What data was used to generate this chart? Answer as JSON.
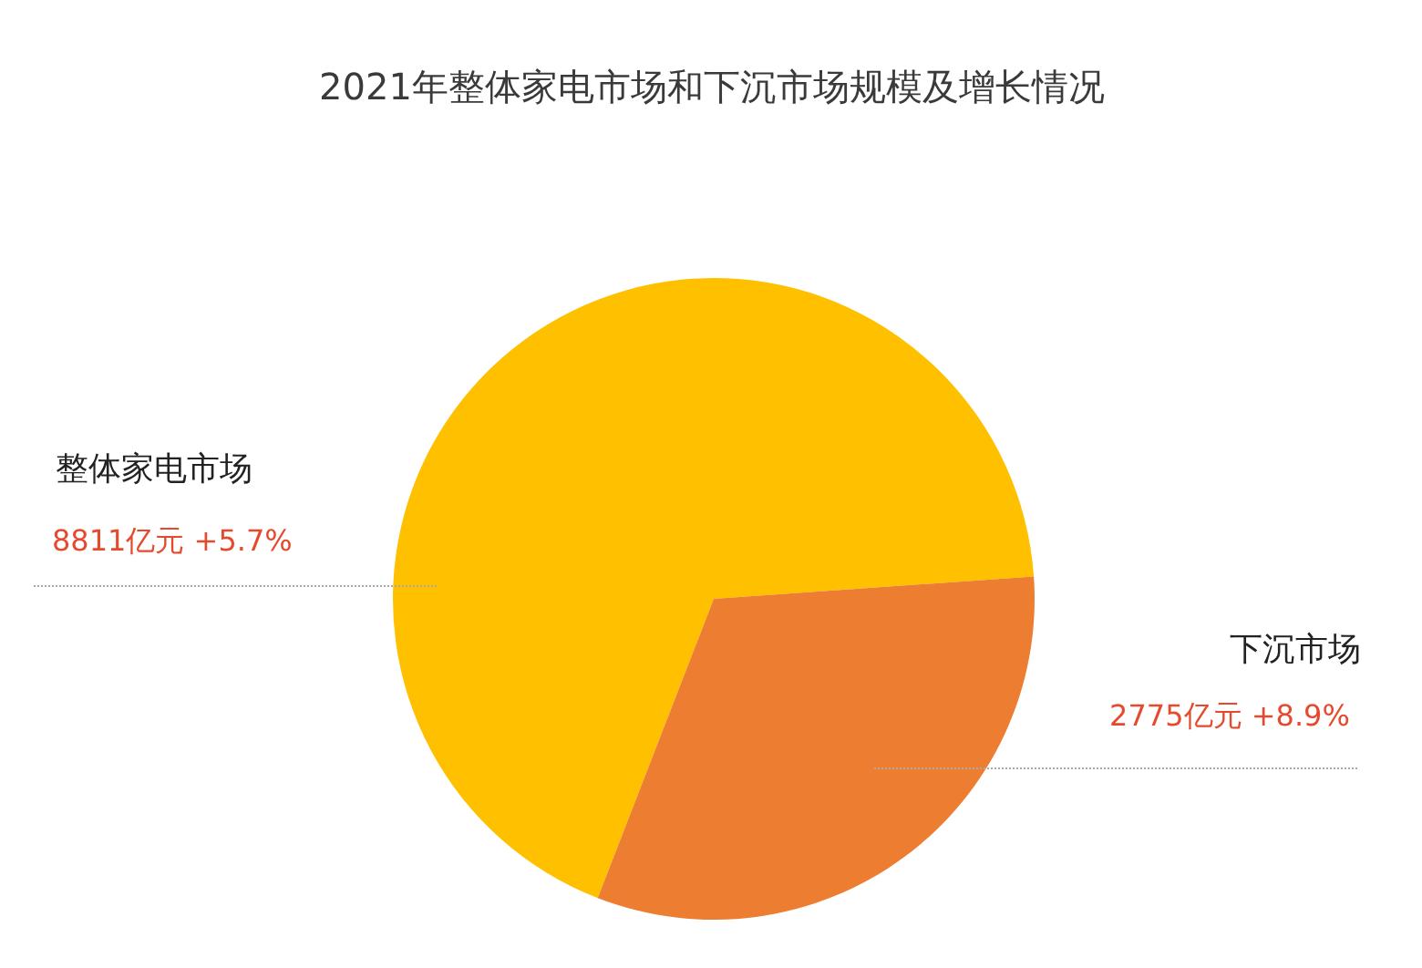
{
  "chart_data": {
    "type": "pie",
    "title": "2021年整体家电市场和下沉市场规模及增长情况",
    "categories": [
      "整体家电市场",
      "下沉市场"
    ],
    "values": [
      68,
      32
    ],
    "colors": [
      "#ffc000",
      "#ed7d31"
    ],
    "annotations": [
      "8811亿元  +5.7%",
      "2775亿元  +8.9%"
    ]
  }
}
